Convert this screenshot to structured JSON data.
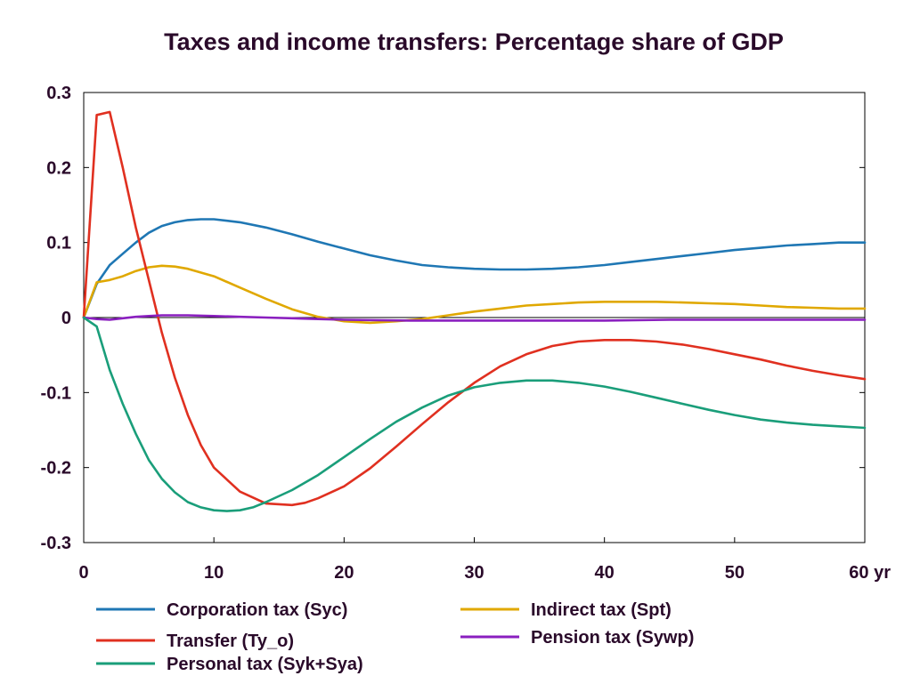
{
  "chart_data": {
    "type": "line",
    "title": "Taxes and income transfers: Percentage share of GDP",
    "xlabel": "yr",
    "ylabel": "",
    "xlim": [
      0,
      60
    ],
    "ylim": [
      -0.3,
      0.3
    ],
    "xticks": [
      0,
      10,
      20,
      30,
      40,
      50,
      60
    ],
    "xtick_labels": [
      "0",
      "10",
      "20",
      "30",
      "40",
      "50",
      "60 yr"
    ],
    "yticks": [
      0.3,
      0.2,
      0.1,
      0,
      -0.1,
      -0.2,
      -0.3
    ],
    "ytick_labels": [
      "0.3",
      "0.2",
      "0.1",
      "0",
      "-0.1",
      "-0.2",
      "-0.3"
    ],
    "grid": false,
    "legend_position": "bottom",
    "series": [
      {
        "name": "Corporation tax (Syc)",
        "color": "#1f77b4",
        "x": [
          0,
          1,
          2,
          3,
          4,
          5,
          6,
          7,
          8,
          9,
          10,
          12,
          14,
          16,
          18,
          20,
          22,
          24,
          26,
          28,
          30,
          32,
          34,
          36,
          38,
          40,
          42,
          44,
          46,
          48,
          50,
          52,
          54,
          56,
          58,
          60
        ],
        "y": [
          0,
          0.045,
          0.07,
          0.085,
          0.1,
          0.113,
          0.122,
          0.127,
          0.13,
          0.131,
          0.131,
          0.127,
          0.12,
          0.111,
          0.101,
          0.092,
          0.083,
          0.076,
          0.07,
          0.067,
          0.065,
          0.064,
          0.064,
          0.065,
          0.067,
          0.07,
          0.074,
          0.078,
          0.082,
          0.086,
          0.09,
          0.093,
          0.096,
          0.098,
          0.1,
          0.1
        ]
      },
      {
        "name": "Indirect tax (Spt)",
        "color": "#e0a800",
        "x": [
          0,
          1,
          2,
          3,
          4,
          5,
          6,
          7,
          8,
          10,
          12,
          14,
          16,
          18,
          20,
          22,
          24,
          26,
          28,
          30,
          32,
          34,
          36,
          38,
          40,
          42,
          44,
          46,
          48,
          50,
          52,
          54,
          56,
          58,
          60
        ],
        "y": [
          0,
          0.047,
          0.05,
          0.055,
          0.062,
          0.067,
          0.069,
          0.068,
          0.065,
          0.055,
          0.04,
          0.025,
          0.011,
          0.001,
          -0.005,
          -0.007,
          -0.005,
          -0.002,
          0.003,
          0.008,
          0.012,
          0.016,
          0.018,
          0.02,
          0.021,
          0.021,
          0.021,
          0.02,
          0.019,
          0.018,
          0.016,
          0.014,
          0.013,
          0.012,
          0.012
        ]
      },
      {
        "name": "Transfer (Ty_o)",
        "color": "#e03020",
        "x": [
          0,
          1,
          2,
          3,
          4,
          5,
          6,
          7,
          8,
          9,
          10,
          12,
          14,
          16,
          17,
          18,
          20,
          22,
          24,
          26,
          28,
          30,
          32,
          34,
          36,
          38,
          40,
          42,
          44,
          46,
          48,
          50,
          52,
          54,
          56,
          58,
          60
        ],
        "y": [
          0,
          0.27,
          0.274,
          0.2,
          0.12,
          0.05,
          -0.02,
          -0.08,
          -0.13,
          -0.17,
          -0.2,
          -0.232,
          -0.248,
          -0.25,
          -0.247,
          -0.241,
          -0.225,
          -0.201,
          -0.172,
          -0.142,
          -0.113,
          -0.087,
          -0.065,
          -0.049,
          -0.038,
          -0.032,
          -0.03,
          -0.03,
          -0.032,
          -0.036,
          -0.042,
          -0.049,
          -0.056,
          -0.064,
          -0.071,
          -0.077,
          -0.082
        ]
      },
      {
        "name": "Pension tax (Sywp)",
        "color": "#8a1fbf",
        "x": [
          0,
          1,
          2,
          3,
          4,
          5,
          6,
          8,
          10,
          12,
          14,
          16,
          18,
          20,
          25,
          30,
          35,
          40,
          45,
          50,
          55,
          60
        ],
        "y": [
          0,
          -0.002,
          -0.003,
          -0.001,
          0.001,
          0.002,
          0.003,
          0.003,
          0.002,
          0.001,
          0.0,
          -0.001,
          -0.002,
          -0.003,
          -0.004,
          -0.004,
          -0.004,
          -0.004,
          -0.003,
          -0.003,
          -0.003,
          -0.003
        ]
      },
      {
        "name": "Personal tax (Syk+Sya)",
        "color": "#1a9e7a",
        "x": [
          0,
          1,
          2,
          3,
          4,
          5,
          6,
          7,
          8,
          9,
          10,
          11,
          12,
          13,
          14,
          16,
          18,
          20,
          22,
          24,
          26,
          28,
          30,
          32,
          34,
          36,
          38,
          40,
          42,
          44,
          46,
          48,
          50,
          52,
          54,
          56,
          58,
          60
        ],
        "y": [
          0,
          -0.012,
          -0.07,
          -0.115,
          -0.155,
          -0.19,
          -0.215,
          -0.233,
          -0.246,
          -0.253,
          -0.257,
          -0.258,
          -0.257,
          -0.253,
          -0.246,
          -0.23,
          -0.21,
          -0.186,
          -0.162,
          -0.139,
          -0.12,
          -0.104,
          -0.093,
          -0.087,
          -0.084,
          -0.084,
          -0.087,
          -0.092,
          -0.099,
          -0.107,
          -0.115,
          -0.123,
          -0.13,
          -0.136,
          -0.14,
          -0.143,
          -0.145,
          -0.147
        ]
      }
    ]
  },
  "legend_items": [
    {
      "label": "Corporation tax (Syc)",
      "color": "#1f77b4"
    },
    {
      "label": "Transfer (Ty_o)",
      "color": "#e03020"
    },
    {
      "label": "Personal tax (Syk+Sya)",
      "color": "#1a9e7a"
    },
    {
      "label": "Indirect tax (Spt)",
      "color": "#e0a800"
    },
    {
      "label": "Pension tax (Sywp)",
      "color": "#8a1fbf"
    }
  ]
}
